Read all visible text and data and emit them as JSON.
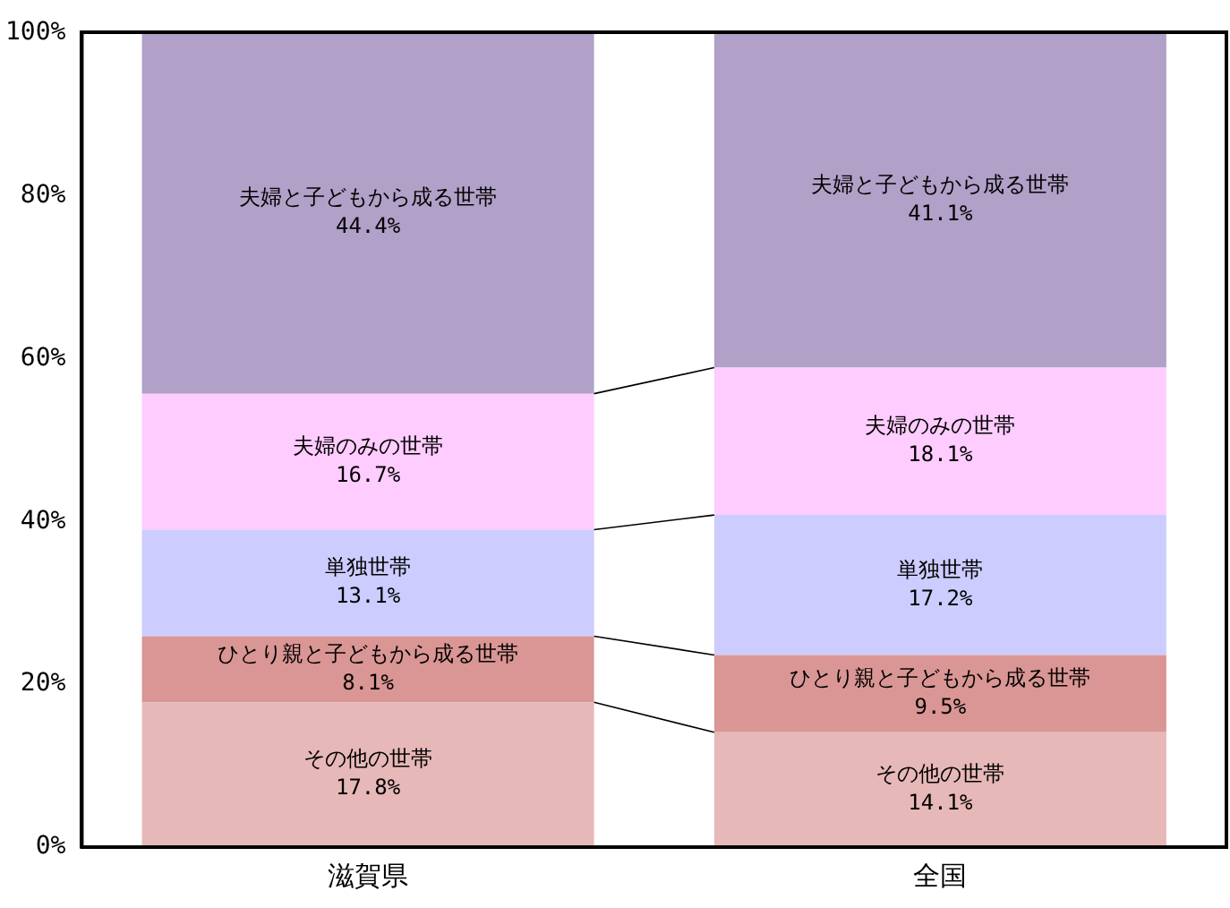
{
  "chart_data": {
    "type": "bar",
    "stacked": true,
    "categories": [
      "滋賀県",
      "全国"
    ],
    "series": [
      {
        "name": "その他の世帯",
        "color": "#e6b8b7",
        "values": [
          17.8,
          14.1
        ],
        "value_labels": [
          "17.8%",
          "14.1%"
        ]
      },
      {
        "name": "ひとり親と子どもから成る世帯",
        "color": "#da9694",
        "values": [
          8.1,
          9.5
        ],
        "value_labels": [
          "8.1%",
          "9.5%"
        ]
      },
      {
        "name": "単独世帯",
        "color": "#ccccff",
        "values": [
          13.1,
          17.2
        ],
        "value_labels": [
          "13.1%",
          "17.2%"
        ]
      },
      {
        "name": "夫婦のみの世帯",
        "color": "#ffccff",
        "values": [
          16.7,
          18.1
        ],
        "value_labels": [
          "16.7%",
          "18.1%"
        ]
      },
      {
        "name": "夫婦と子どもから成る世帯",
        "color": "#b1a0c7",
        "values": [
          44.4,
          41.1
        ],
        "value_labels": [
          "44.4%",
          "41.1%"
        ]
      }
    ],
    "ylim": [
      0,
      100.1
    ],
    "yticks": [
      {
        "value": 0,
        "label": "0%"
      },
      {
        "value": 20,
        "label": "20%"
      },
      {
        "value": 40,
        "label": "40%"
      },
      {
        "value": 60,
        "label": "60%"
      },
      {
        "value": 80,
        "label": "80%"
      },
      {
        "value": 100,
        "label": "100%"
      }
    ],
    "grid": false,
    "legend": false
  }
}
